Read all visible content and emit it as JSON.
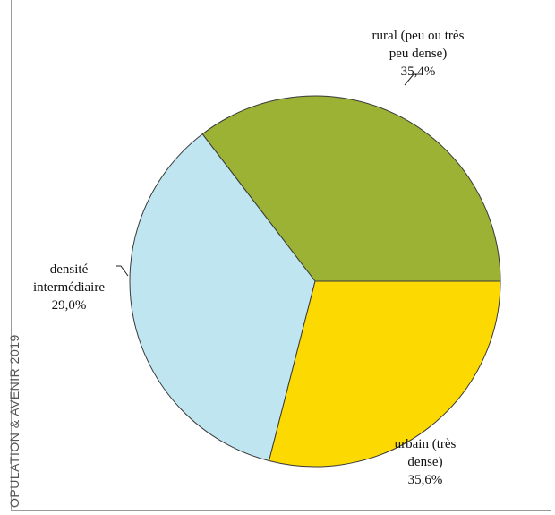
{
  "side_caption": "OPULATION & AVENIR 2019",
  "chart_data": {
    "type": "pie",
    "title": "",
    "legend": "none",
    "slices": [
      {
        "label_lines": [
          "rural (peu ou très",
          "peu dense)"
        ],
        "value": 35.4,
        "value_label": "35,4%",
        "color": "#9bb234"
      },
      {
        "label_lines": [
          "urbain (très",
          "dense)"
        ],
        "value": 35.6,
        "value_label": "35,6%",
        "color": "#bfe6f0"
      },
      {
        "label_lines": [
          "densité",
          "intermédiaire"
        ],
        "value": 29.0,
        "value_label": "29,0%",
        "color": "#fcd900"
      }
    ]
  }
}
